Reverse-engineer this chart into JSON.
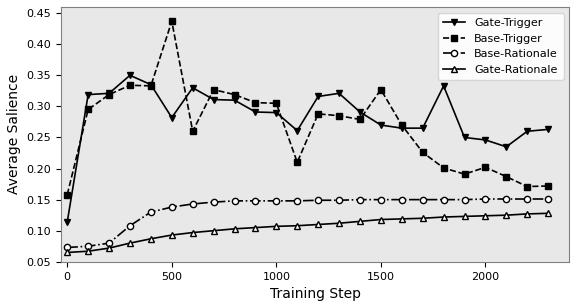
{
  "steps": [
    0,
    100,
    200,
    300,
    400,
    500,
    600,
    700,
    800,
    900,
    1000,
    1100,
    1200,
    1300,
    1400,
    1500,
    1600,
    1700,
    1800,
    1900,
    2000,
    2100,
    2200,
    2300
  ],
  "gate_trigger": [
    0.0114,
    0.0319,
    0.0321,
    0.035,
    0.0335,
    0.0282,
    0.033,
    0.0311,
    0.031,
    0.0291,
    0.029,
    0.0261,
    0.0316,
    0.0321,
    0.0291,
    0.027,
    0.0265,
    0.0265,
    0.0333,
    0.025,
    0.0246,
    0.0235,
    0.026,
    0.0263
  ],
  "base_trigger": [
    0.0158,
    0.0295,
    0.0319,
    0.0334,
    0.0333,
    0.0437,
    0.026,
    0.0327,
    0.0319,
    0.0306,
    0.0305,
    0.021,
    0.0288,
    0.0285,
    0.0279,
    0.0327,
    0.027,
    0.0226,
    0.0201,
    0.0191,
    0.0202,
    0.0187,
    0.0171,
    0.0172
  ],
  "base_rationale": [
    0.0073,
    0.0075,
    0.008,
    0.0108,
    0.013,
    0.0138,
    0.0143,
    0.0146,
    0.0148,
    0.0148,
    0.0148,
    0.0148,
    0.0149,
    0.0149,
    0.015,
    0.015,
    0.015,
    0.015,
    0.015,
    0.015,
    0.0151,
    0.0151,
    0.0151,
    0.0151
  ],
  "gate_rationale": [
    0.0065,
    0.0067,
    0.0072,
    0.008,
    0.0087,
    0.0093,
    0.0097,
    0.01,
    0.0103,
    0.0105,
    0.0107,
    0.0108,
    0.011,
    0.0112,
    0.0115,
    0.0118,
    0.0119,
    0.012,
    0.0122,
    0.0123,
    0.0124,
    0.0125,
    0.0127,
    0.0128
  ],
  "xlim": [
    -30,
    2400
  ],
  "ylim_min": 0.005,
  "ylim_max": 0.046,
  "xlabel": "Training Step",
  "ylabel": "Average Salience",
  "legend_labels": [
    "Gate-Trigger",
    "Base-Trigger",
    "Base-Rationale",
    "Gate-Rationale"
  ],
  "yticks": [
    0.005,
    0.01,
    0.015,
    0.02,
    0.025,
    0.03,
    0.035,
    0.04,
    0.045
  ],
  "ytick_labels": [
    "0.05",
    "0.10",
    "0.15",
    "0.20",
    "0.25",
    "0.30",
    "0.35",
    "0.40",
    "0.45"
  ],
  "xticks": [
    0,
    500,
    1000,
    1500,
    2000
  ],
  "xtick_labels": [
    "0",
    "500",
    "1000",
    "1500",
    "2000"
  ],
  "bg_color": "#e8e8e8"
}
